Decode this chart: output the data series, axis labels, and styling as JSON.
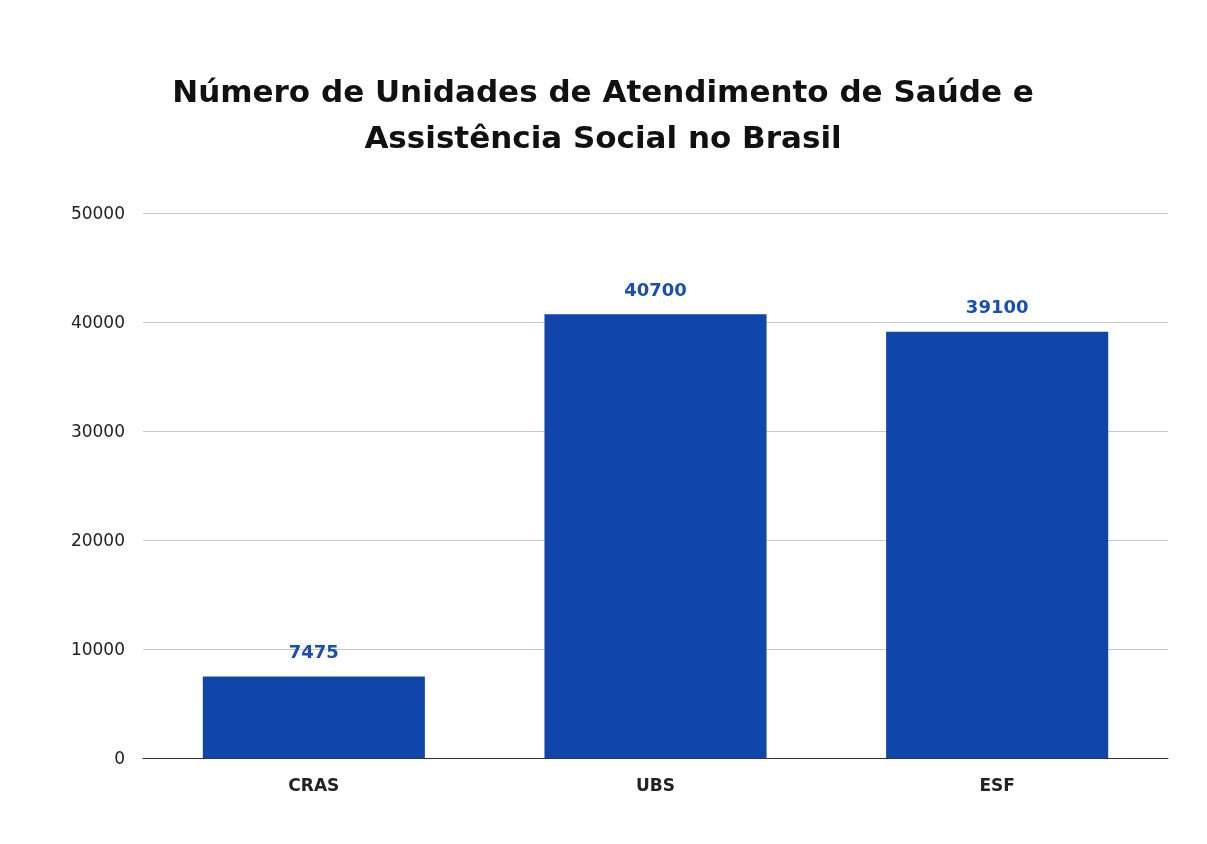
{
  "chart_data": {
    "type": "bar",
    "title": "Número de Unidades de Atendimento de Saúde e\nAssistência Social no Brasil",
    "categories": [
      "CRAS",
      "UBS",
      "ESF"
    ],
    "values": [
      7475,
      40700,
      39100
    ],
    "color": "#1046a9",
    "ylim": [
      0,
      50000
    ],
    "yticks": [
      0,
      10000,
      20000,
      30000,
      40000,
      50000
    ],
    "grid": "y",
    "data_labels": true
  }
}
